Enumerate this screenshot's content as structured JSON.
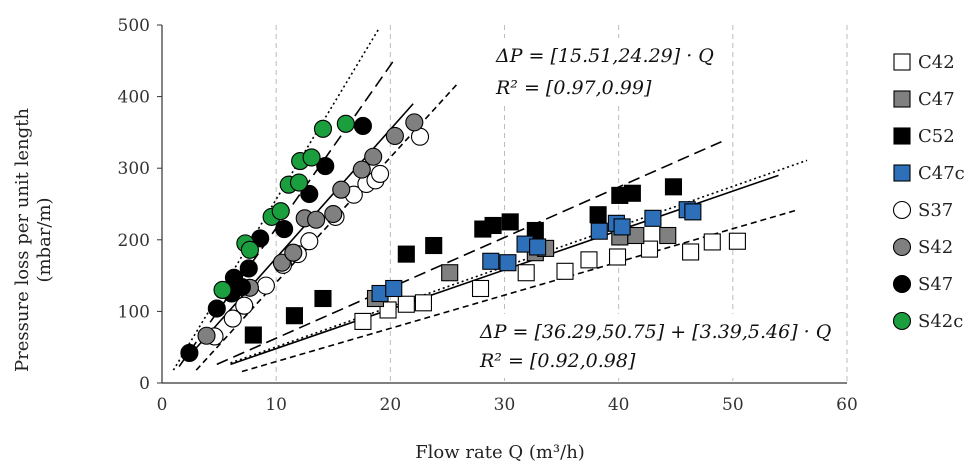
{
  "chart_data": {
    "type": "scatter",
    "xlabel": "Flow rate Q (m³/h)",
    "ylabel_line1": "Pressure loss per unit length",
    "ylabel_line2": "(mbar/m)",
    "xlim": [
      0,
      60
    ],
    "ylim": [
      0,
      500
    ],
    "xticks": [
      "0",
      "10",
      "20",
      "30",
      "40",
      "50",
      "60"
    ],
    "yticks": [
      "0",
      "100",
      "200",
      "300",
      "400",
      "500"
    ],
    "grid": "vertical dashed",
    "legend_position": "right",
    "annotations": [
      {
        "line1": "ΔP = [15.51,24.29] · Q",
        "line2": "R² = [0.97,0.99]",
        "position": "upper-middle"
      },
      {
        "line1": "ΔP = [36.29,50.75] + [3.39,5.46] · Q",
        "line2": "R² = [0.92,0.98]",
        "position": "lower-right"
      }
    ],
    "series": [
      {
        "name": "C42",
        "marker": "square",
        "color": "#ffffff",
        "points": [
          [
            17.6,
            86
          ],
          [
            19.8,
            102
          ],
          [
            21.4,
            110
          ],
          [
            22.9,
            112
          ],
          [
            27.9,
            132
          ],
          [
            31.9,
            154
          ],
          [
            35.3,
            156
          ],
          [
            37.4,
            172
          ],
          [
            39.9,
            176
          ],
          [
            42.7,
            187
          ],
          [
            46.3,
            183
          ],
          [
            48.2,
            197
          ],
          [
            50.4,
            198
          ]
        ]
      },
      {
        "name": "C47",
        "marker": "square",
        "color": "#808080",
        "points": [
          [
            18.7,
            118
          ],
          [
            25.2,
            154
          ],
          [
            32.7,
            182
          ],
          [
            33.6,
            188
          ],
          [
            40.1,
            204
          ],
          [
            41.5,
            206
          ],
          [
            44.3,
            206
          ]
        ]
      },
      {
        "name": "C52",
        "marker": "square",
        "color": "#000000",
        "points": [
          [
            8.0,
            67
          ],
          [
            11.6,
            94
          ],
          [
            14.1,
            118
          ],
          [
            21.4,
            180
          ],
          [
            23.8,
            192
          ],
          [
            28.1,
            215
          ],
          [
            29.0,
            220
          ],
          [
            30.5,
            225
          ],
          [
            32.7,
            213
          ],
          [
            38.2,
            235
          ],
          [
            40.1,
            262
          ],
          [
            41.2,
            265
          ],
          [
            44.8,
            274
          ]
        ]
      },
      {
        "name": "C47c",
        "marker": "square",
        "color": "#2e6fba",
        "points": [
          [
            19.1,
            125
          ],
          [
            20.3,
            132
          ],
          [
            28.8,
            170
          ],
          [
            30.3,
            168
          ],
          [
            31.8,
            194
          ],
          [
            32.9,
            190
          ],
          [
            38.3,
            212
          ],
          [
            39.8,
            223
          ],
          [
            40.3,
            218
          ],
          [
            43.0,
            230
          ],
          [
            46.0,
            242
          ],
          [
            46.5,
            239
          ]
        ]
      },
      {
        "name": "S37",
        "marker": "circle",
        "color": "#ffffff",
        "points": [
          [
            4.6,
            65
          ],
          [
            6.2,
            90
          ],
          [
            7.2,
            108
          ],
          [
            9.1,
            136
          ],
          [
            10.6,
            165
          ],
          [
            11.9,
            180
          ],
          [
            12.9,
            198
          ],
          [
            15.2,
            232
          ],
          [
            16.8,
            263
          ],
          [
            17.9,
            278
          ],
          [
            18.7,
            283
          ],
          [
            19.1,
            292
          ],
          [
            22.6,
            344
          ]
        ]
      },
      {
        "name": "S42",
        "marker": "circle",
        "color": "#808080",
        "points": [
          [
            3.9,
            66
          ],
          [
            7.7,
            133
          ],
          [
            10.5,
            168
          ],
          [
            11.5,
            182
          ],
          [
            12.5,
            230
          ],
          [
            13.5,
            228
          ],
          [
            15.0,
            236
          ],
          [
            15.7,
            270
          ],
          [
            17.5,
            298
          ],
          [
            18.5,
            316
          ],
          [
            20.4,
            345
          ],
          [
            22.1,
            364
          ]
        ]
      },
      {
        "name": "S47",
        "marker": "circle",
        "color": "#000000",
        "points": [
          [
            2.4,
            42
          ],
          [
            4.8,
            104
          ],
          [
            6.1,
            125
          ],
          [
            6.3,
            147
          ],
          [
            7.0,
            134
          ],
          [
            7.6,
            160
          ],
          [
            8.6,
            202
          ],
          [
            10.7,
            215
          ],
          [
            12.9,
            264
          ],
          [
            14.3,
            303
          ],
          [
            17.6,
            359
          ]
        ]
      },
      {
        "name": "S42c",
        "marker": "circle",
        "color": "#1a9e3e",
        "points": [
          [
            5.3,
            130
          ],
          [
            7.3,
            195
          ],
          [
            7.7,
            186
          ],
          [
            9.6,
            232
          ],
          [
            10.4,
            240
          ],
          [
            11.1,
            277
          ],
          [
            12.0,
            280
          ],
          [
            12.1,
            310
          ],
          [
            13.1,
            315
          ],
          [
            14.1,
            355
          ],
          [
            16.1,
            362
          ]
        ]
      }
    ],
    "fit_lines": [
      {
        "style": "dotted",
        "x": [
          1.0,
          19.0
        ],
        "y": [
          18,
          495
        ]
      },
      {
        "style": "dashed",
        "x": [
          1.5,
          20.5
        ],
        "y": [
          23,
          455
        ]
      },
      {
        "style": "solid",
        "x": [
          2.5,
          22.0
        ],
        "y": [
          40,
          390
        ]
      },
      {
        "style": "short-dashed",
        "x": [
          3.0,
          26.0
        ],
        "y": [
          18,
          420
        ]
      },
      {
        "style": "dashed",
        "x": [
          4.8,
          49.0
        ],
        "y": [
          26,
          337
        ]
      },
      {
        "style": "dotted",
        "x": [
          6.0,
          56.5
        ],
        "y": [
          28,
          311
        ]
      },
      {
        "style": "solid",
        "x": [
          6.0,
          54.0
        ],
        "y": [
          26,
          290
        ]
      },
      {
        "style": "short-dashed",
        "x": [
          7.0,
          55.5
        ],
        "y": [
          16,
          241
        ]
      }
    ]
  }
}
